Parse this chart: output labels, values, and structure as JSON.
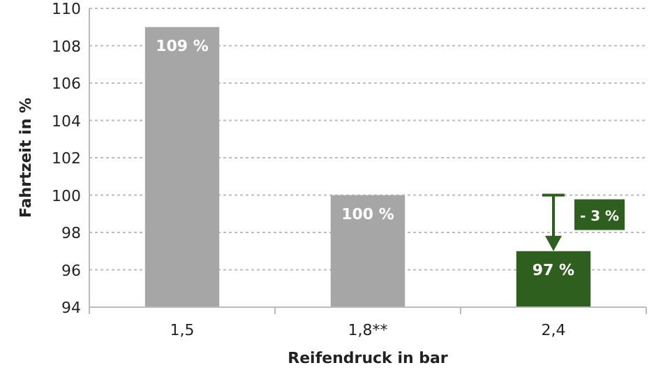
{
  "chart_data": {
    "type": "bar",
    "xlabel": "Reifendruck in bar",
    "ylabel": "Fahrtzeit in %",
    "categories": [
      "1,5",
      "1,8**",
      "2,4"
    ],
    "values": [
      109,
      100,
      97
    ],
    "colors": [
      "#a6a6a6",
      "#a6a6a6",
      "#2f5f1f"
    ],
    "value_labels": [
      "109 %",
      "100 %",
      "97 %"
    ],
    "ylim": [
      94,
      110
    ],
    "yticks": [
      94,
      96,
      98,
      100,
      102,
      104,
      106,
      108,
      110
    ],
    "grid": "y",
    "annotations": [
      "- 3 %"
    ]
  }
}
